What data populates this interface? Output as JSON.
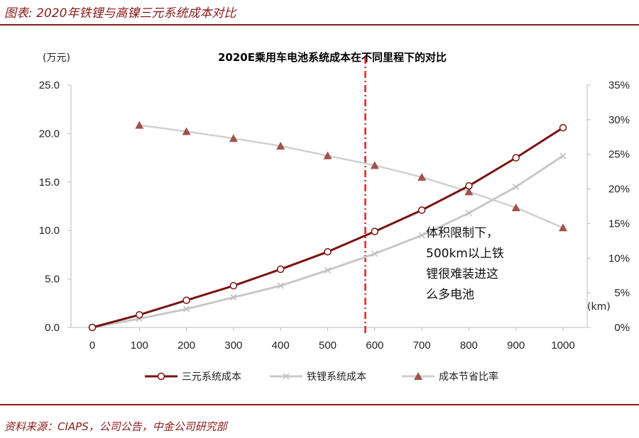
{
  "figure_title": "图表: 2020年铁锂与高镍三元系统成本对比",
  "source": "资料来源：CIAPS，公司公告，中金公司研究部",
  "colors": {
    "ternary": "#7a1010",
    "lfp": "#c8c8c8",
    "saving": "#a0524d",
    "divider": "#d9232a",
    "brand": "#8b1a1a"
  },
  "chart_data": {
    "type": "line",
    "title": "2020E乘用车电池系统成本在不同里程下的对比",
    "left_unit": "(万元)",
    "x_unit": "(km)",
    "categories": [
      "0",
      "100",
      "200",
      "300",
      "400",
      "500",
      "600",
      "700",
      "800",
      "900",
      "1000"
    ],
    "x": [
      0,
      100,
      200,
      300,
      400,
      500,
      600,
      700,
      800,
      900,
      1000
    ],
    "y_left_ticks": [
      "0.0",
      "5.0",
      "10.0",
      "15.0",
      "20.0",
      "25.0"
    ],
    "y_left_range": [
      0,
      25
    ],
    "y_right_ticks": [
      "0%",
      "5%",
      "10%",
      "15%",
      "20%",
      "25%",
      "30%",
      "35%"
    ],
    "y_right_range": [
      0,
      35
    ],
    "series": [
      {
        "name": "三元系统成本",
        "axis": "left",
        "marker": "circle",
        "x": [
          0,
          100,
          200,
          300,
          400,
          500,
          600,
          700,
          800,
          900,
          1000
        ],
        "values": [
          0.0,
          1.3,
          2.8,
          4.3,
          6.0,
          7.8,
          9.9,
          12.1,
          14.6,
          17.5,
          20.6
        ]
      },
      {
        "name": "铁锂系统成本",
        "axis": "left",
        "marker": "x",
        "x": [
          0,
          100,
          200,
          300,
          400,
          500,
          600,
          700,
          800,
          900,
          1000
        ],
        "values": [
          0.0,
          0.9,
          1.9,
          3.1,
          4.3,
          5.9,
          7.6,
          9.5,
          11.8,
          14.5,
          17.7
        ]
      },
      {
        "name": "成本节省比率",
        "axis": "right",
        "marker": "triangle",
        "x": [
          100,
          200,
          300,
          400,
          500,
          600,
          700,
          800,
          900,
          1000
        ],
        "values": [
          29.2,
          28.3,
          27.3,
          26.2,
          24.8,
          23.4,
          21.7,
          19.6,
          17.3,
          14.4
        ]
      }
    ],
    "divider_x": 580,
    "annotation": [
      "体积限制下，",
      "500km以上铁",
      "锂很难装进这",
      "么多电池"
    ],
    "grid": false,
    "legend_position": "bottom"
  }
}
